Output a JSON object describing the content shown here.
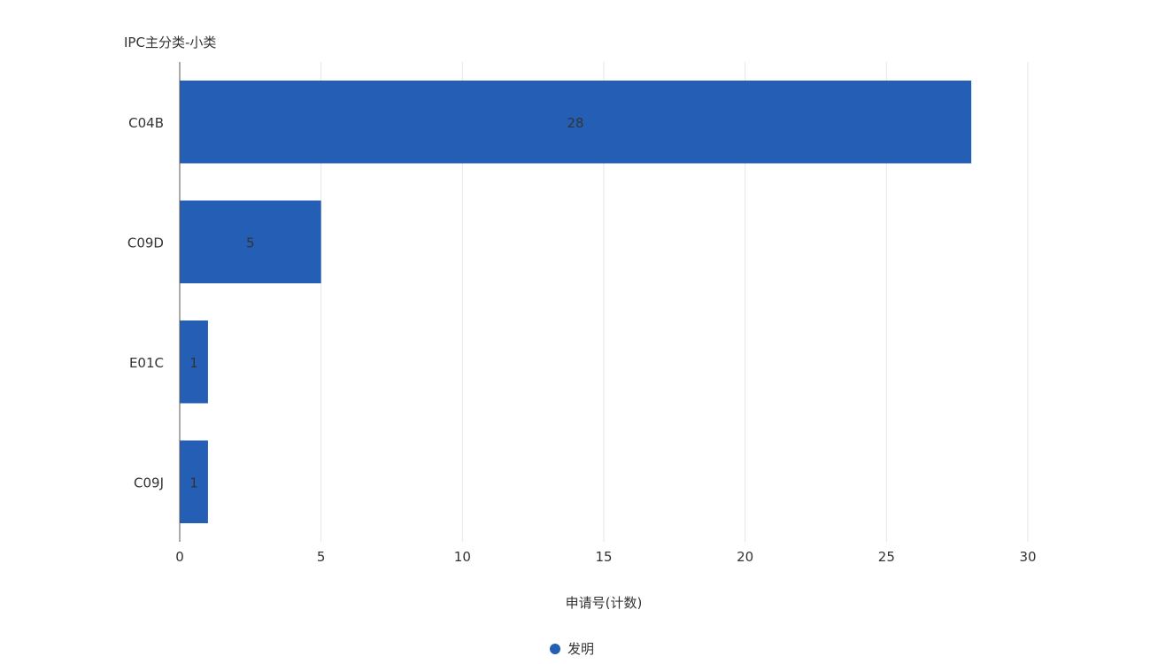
{
  "chart_data": {
    "type": "bar",
    "orientation": "horizontal",
    "title": "IPC主分类-小类",
    "xlabel": "申请号(计数)",
    "ylabel": "",
    "categories": [
      "C04B",
      "C09D",
      "E01C",
      "C09J"
    ],
    "series": [
      {
        "name": "发明",
        "values": [
          28,
          5,
          1,
          1
        ],
        "color": "#245fb5"
      }
    ],
    "xlim": [
      0,
      30
    ],
    "xticks": [
      0,
      5,
      10,
      15,
      20,
      25,
      30
    ],
    "grid": true,
    "data_labels": true,
    "legend_position": "bottom"
  }
}
